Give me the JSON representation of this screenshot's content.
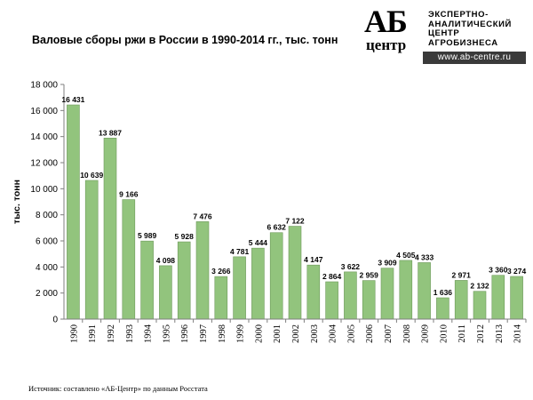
{
  "logo": {
    "mark_top": "АБ",
    "mark_bottom": "центр",
    "line1": "ЭКСПЕРТНО-",
    "line2": "АНАЛИТИЧЕСКИЙ",
    "line3": "ЦЕНТР",
    "line4": "АГРОБИЗНЕСА",
    "url": "www.ab-centre.ru"
  },
  "source": "Источник: составлено «АБ-Центр» по данным Росстата",
  "chart_data": {
    "type": "bar",
    "title": "Валовые сборы ржи в России в 1990-2014 гг., тыс. тонн",
    "xlabel": "",
    "ylabel": "тыс. тонн",
    "categories": [
      "1990",
      "1991",
      "1992",
      "1993",
      "1994",
      "1995",
      "1996",
      "1997",
      "1998",
      "1999",
      "2000",
      "2001",
      "2002",
      "2003",
      "2004",
      "2005",
      "2006",
      "2007",
      "2008",
      "2009",
      "2010",
      "2011",
      "2012",
      "2013",
      "2014"
    ],
    "values": [
      16431,
      10639,
      13887,
      9166,
      5989,
      4098,
      5928,
      7476,
      3266,
      4781,
      5444,
      6632,
      7122,
      4147,
      2864,
      3622,
      2959,
      3909,
      4505,
      4333,
      1636,
      2971,
      2132,
      3360,
      3274
    ],
    "data_labels": [
      "16 431",
      "10 639",
      "13 887",
      "9 166",
      "5 989",
      "4 098",
      "5 928",
      "7 476",
      "3 266",
      "4 781",
      "5 444",
      "6 632",
      "7 122",
      "4 147",
      "2 864",
      "3 622",
      "2 959",
      "3 909",
      "4 505",
      "4 333",
      "1 636",
      "2 971",
      "2 132",
      "3 360",
      "3 274"
    ],
    "ylim": [
      0,
      18000
    ],
    "yticks": [
      0,
      2000,
      4000,
      6000,
      8000,
      10000,
      12000,
      14000,
      16000,
      18000
    ],
    "ytick_labels": [
      "0",
      "2 000",
      "4 000",
      "6 000",
      "8 000",
      "10 000",
      "12 000",
      "14 000",
      "16 000",
      "18 000"
    ],
    "grid": false,
    "legend": "none",
    "bar_color": "#92c47d",
    "bar_stroke": "#6f9a5c"
  }
}
